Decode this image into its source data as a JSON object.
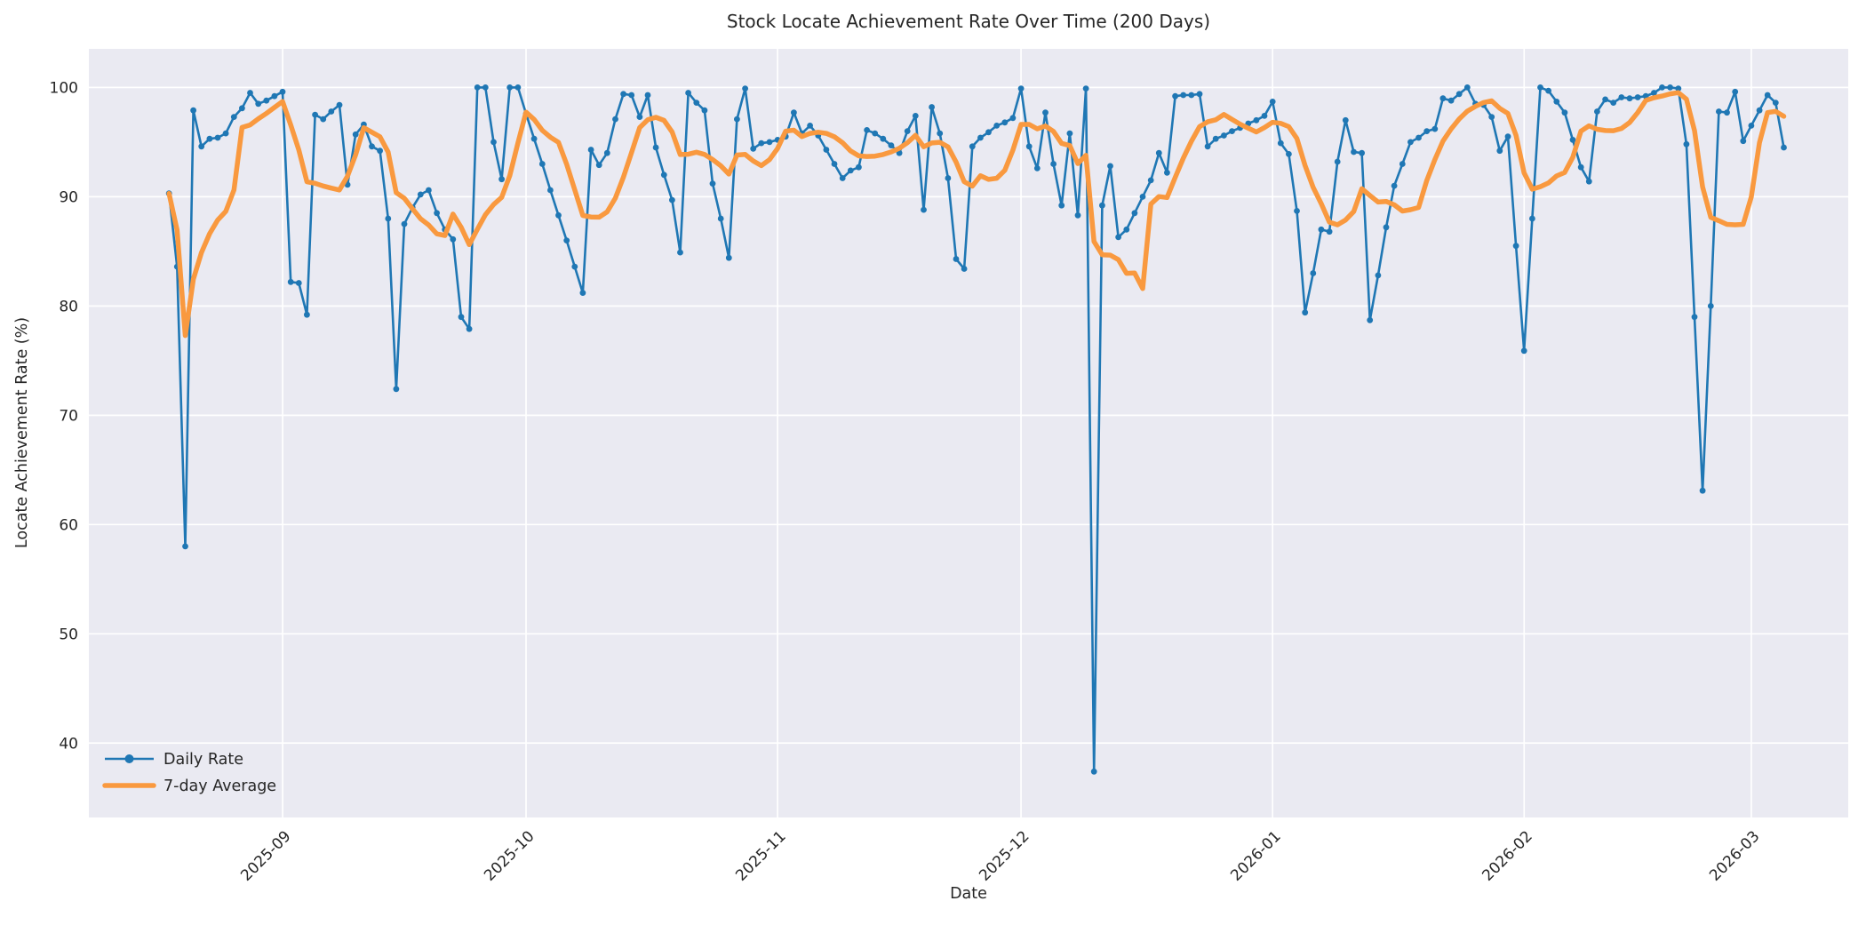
{
  "chart_data": {
    "type": "line",
    "title": "Stock Locate Achievement Rate Over Time (200 Days)",
    "xlabel": "Date",
    "ylabel": "Locate Achievement Rate (%)",
    "grid": true,
    "start_date": "2025-08-18",
    "num_days": 200,
    "x_tick_labels": [
      "2025-09",
      "2025-10",
      "2025-11",
      "2025-12",
      "2026-01",
      "2026-02",
      "2026-03"
    ],
    "y_ticks": [
      40,
      50,
      60,
      70,
      80,
      90,
      100
    ],
    "ylim": [
      33.2,
      103.5
    ],
    "legend": {
      "position": "lower-left",
      "entries": [
        {
          "label": "Daily Rate",
          "color": "#1f77b4",
          "marker": "circle"
        },
        {
          "label": "7-day Average",
          "color": "#f9993f",
          "marker": "none"
        }
      ]
    },
    "colors": {
      "axes_background": "#eaeaf2",
      "figure_background": "#ffffff",
      "gridline": "#ffffff",
      "daily_series": "#1f77b4",
      "average_series": "#f9993f",
      "text": "#262626"
    },
    "series": [
      {
        "name": "Daily Rate",
        "style": "line_with_markers",
        "values": [
          90.3,
          83.6,
          58.0,
          97.9,
          94.6,
          95.3,
          95.4,
          95.8,
          97.3,
          98.1,
          99.5,
          98.5,
          98.8,
          99.2,
          99.6,
          82.2,
          82.1,
          79.2,
          97.5,
          97.1,
          97.8,
          98.4,
          91.1,
          95.7,
          96.6,
          94.6,
          94.2,
          88.0,
          72.4,
          87.5,
          89.0,
          90.2,
          90.6,
          88.5,
          87.0,
          86.1,
          79.0,
          77.9,
          100.0,
          100.0,
          95.0,
          91.6,
          100.0,
          100.0,
          97.6,
          95.3,
          93.0,
          90.6,
          88.3,
          86.0,
          83.6,
          81.2,
          94.3,
          92.9,
          94.0,
          97.1,
          99.4,
          99.3,
          97.3,
          99.3,
          94.5,
          92.0,
          89.7,
          84.9,
          99.5,
          98.6,
          97.9,
          91.2,
          88.0,
          84.4,
          97.1,
          99.9,
          94.4,
          94.9,
          95.0,
          95.2,
          95.5,
          97.7,
          95.8,
          96.5,
          95.6,
          94.3,
          93.0,
          91.7,
          92.4,
          92.7,
          96.1,
          95.8,
          95.3,
          94.7,
          94.0,
          96.0,
          97.4,
          88.8,
          98.2,
          95.8,
          91.7,
          84.3,
          83.4,
          94.6,
          95.4,
          95.9,
          96.5,
          96.8,
          97.2,
          99.9,
          94.6,
          92.6,
          97.7,
          93.0,
          89.2,
          95.8,
          88.3,
          99.9,
          37.4,
          89.2,
          92.8,
          86.3,
          87.0,
          88.5,
          90.0,
          91.5,
          94.0,
          92.2,
          99.2,
          99.3,
          99.3,
          99.4,
          94.6,
          95.3,
          95.6,
          96.0,
          96.3,
          96.7,
          97.0,
          97.4,
          98.7,
          94.9,
          93.9,
          88.7,
          79.4,
          83.0,
          87.0,
          86.8,
          93.2,
          97.0,
          94.1,
          94.0,
          78.7,
          82.8,
          87.2,
          91.0,
          93.0,
          95.0,
          95.4,
          96.0,
          96.2,
          99.0,
          98.8,
          99.4,
          100.0,
          98.5,
          98.4,
          97.3,
          94.2,
          95.5,
          85.5,
          75.9,
          88.0,
          100.0,
          99.7,
          98.7,
          97.7,
          95.2,
          92.7,
          91.4,
          97.8,
          98.9,
          98.6,
          99.1,
          99.0,
          99.1,
          99.2,
          99.5,
          100.0,
          100.0,
          99.9,
          94.8,
          79.0,
          63.1,
          80.0,
          97.8,
          97.7,
          99.6,
          95.1,
          96.5,
          97.9,
          99.3,
          98.6,
          94.5
        ]
      },
      {
        "name": "7-day Average",
        "style": "line",
        "derived": "rolling_mean_window_7_min_periods_1_of_Daily_Rate"
      }
    ]
  }
}
